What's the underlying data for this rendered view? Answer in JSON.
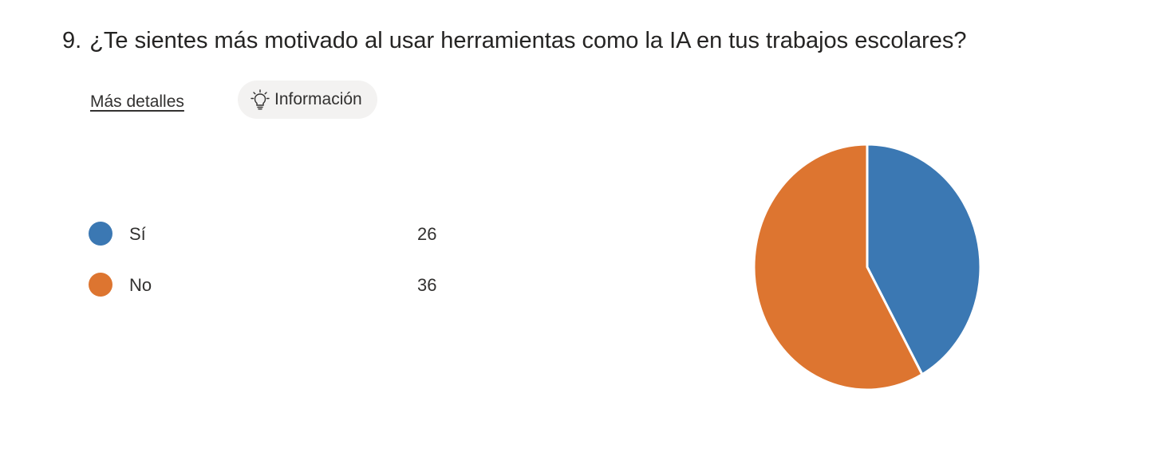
{
  "question": {
    "number": "9.",
    "text": "¿Te sientes más motivado al usar herramientas como la IA en tus trabajos escolares?"
  },
  "actions": {
    "details_link": "Más detalles",
    "info_button": "Información"
  },
  "colors": {
    "si": "#3b78b3",
    "no": "#dd7530",
    "separator": "#ffffff"
  },
  "chart_data": {
    "type": "pie",
    "title": "",
    "slices": [
      {
        "label": "Sí",
        "value": 26,
        "color": "#3b78b3"
      },
      {
        "label": "No",
        "value": 36,
        "color": "#dd7530"
      }
    ],
    "legend": "left",
    "start_angle": "12 o'clock",
    "direction": "clockwise"
  }
}
